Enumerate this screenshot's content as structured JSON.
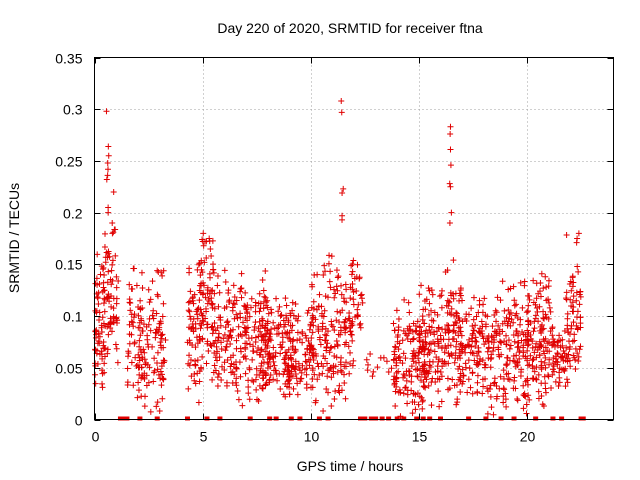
{
  "chart_data": {
    "type": "scatter",
    "title": "Day 220 of 2020, SRMTID for receiver ftna",
    "xlabel": "GPS time / hours",
    "ylabel": "SRMTID / TECUs",
    "xlim": [
      0,
      24
    ],
    "ylim": [
      0,
      0.35
    ],
    "x_ticks": [
      0,
      5,
      10,
      15,
      20
    ],
    "y_ticks": [
      0,
      0.05,
      0.1,
      0.15,
      0.2,
      0.25,
      0.3,
      0.35
    ],
    "x_tick_labels": [
      "0",
      "5",
      "10",
      "15",
      "20"
    ],
    "y_tick_labels": [
      "0",
      "0.05",
      "0.1",
      "0.15",
      "0.2",
      "0.25",
      "0.3",
      "0.35"
    ],
    "grid": true,
    "marker": "+",
    "color": "#e00000",
    "series": [
      {
        "name": "SRMTID",
        "clusters": [
          {
            "x": [
              0.0,
              0.5
            ],
            "y": [
              0.01,
              0.17
            ],
            "n": 60
          },
          {
            "x": [
              0.4,
              1.1
            ],
            "y": [
              0.04,
              0.22
            ],
            "n": 70
          },
          {
            "x": [
              1.5,
              2.2
            ],
            "y": [
              0.0,
              0.16
            ],
            "n": 45
          },
          {
            "x": [
              2.0,
              3.3
            ],
            "y": [
              0.0,
              0.16
            ],
            "n": 110
          },
          {
            "x": [
              4.3,
              5.0
            ],
            "y": [
              0.01,
              0.16
            ],
            "n": 70
          },
          {
            "x": [
              4.8,
              5.5
            ],
            "y": [
              0.05,
              0.19
            ],
            "n": 60
          },
          {
            "x": [
              5.4,
              8.1
            ],
            "y": [
              0.01,
              0.15
            ],
            "n": 230
          },
          {
            "x": [
              7.6,
              9.2
            ],
            "y": [
              0.01,
              0.12
            ],
            "n": 120
          },
          {
            "x": [
              8.7,
              10.1
            ],
            "y": [
              0.02,
              0.12
            ],
            "n": 110
          },
          {
            "x": [
              10.0,
              11.0
            ],
            "y": [
              0.0,
              0.17
            ],
            "n": 90
          },
          {
            "x": [
              11.0,
              12.0
            ],
            "y": [
              0.01,
              0.16
            ],
            "n": 90
          },
          {
            "x": [
              11.9,
              12.4
            ],
            "y": [
              0.07,
              0.16
            ],
            "n": 25
          },
          {
            "x": [
              12.5,
              13.9
            ],
            "y": [
              0.04,
              0.07
            ],
            "n": 12
          },
          {
            "x": [
              13.8,
              15.3
            ],
            "y": [
              0.0,
              0.12
            ],
            "n": 130
          },
          {
            "x": [
              15.0,
              16.2
            ],
            "y": [
              0.0,
              0.14
            ],
            "n": 120
          },
          {
            "x": [
              16.2,
              17.0
            ],
            "y": [
              0.0,
              0.16
            ],
            "n": 80
          },
          {
            "x": [
              16.8,
              18.6
            ],
            "y": [
              0.0,
              0.13
            ],
            "n": 150
          },
          {
            "x": [
              18.6,
              20.1
            ],
            "y": [
              0.0,
              0.14
            ],
            "n": 140
          },
          {
            "x": [
              20.0,
              21.3
            ],
            "y": [
              0.0,
              0.15
            ],
            "n": 130
          },
          {
            "x": [
              21.2,
              22.0
            ],
            "y": [
              0.03,
              0.09
            ],
            "n": 50
          },
          {
            "x": [
              21.8,
              22.5
            ],
            "y": [
              0.04,
              0.18
            ],
            "n": 60
          }
        ],
        "peaks": [
          {
            "x": 0.6,
            "values": [
              0.298,
              0.264,
              0.255,
              0.248,
              0.242,
              0.236,
              0.232,
              0.205,
              0.2
            ]
          },
          {
            "x": 0.85,
            "values": [
              0.22,
              0.19,
              0.18
            ]
          },
          {
            "x": 5.05,
            "values": [
              0.18,
              0.172,
              0.168
            ]
          },
          {
            "x": 11.45,
            "values": [
              0.308,
              0.297,
              0.223,
              0.219,
              0.197,
              0.193
            ]
          },
          {
            "x": 16.45,
            "values": [
              0.283,
              0.276,
              0.261,
              0.246,
              0.228,
              0.225,
              0.2,
              0.19
            ]
          },
          {
            "x": 22.35,
            "values": [
              0.18,
              0.175,
              0.171
            ]
          }
        ],
        "zero_x": [
          1.2,
          1.3,
          1.5,
          2.1,
          2.9,
          4.3,
          5.2,
          5.8,
          7.2,
          8.1,
          8.4,
          9.1,
          9.5,
          10.4,
          10.8,
          12.3,
          12.5,
          12.8,
          13.0,
          13.3,
          13.6,
          14.0,
          14.3,
          14.9,
          15.2,
          15.5,
          16.0,
          17.3,
          18.1,
          18.8,
          19.4,
          20.4,
          21.2,
          21.6,
          22.5,
          22.6
        ]
      }
    ]
  }
}
